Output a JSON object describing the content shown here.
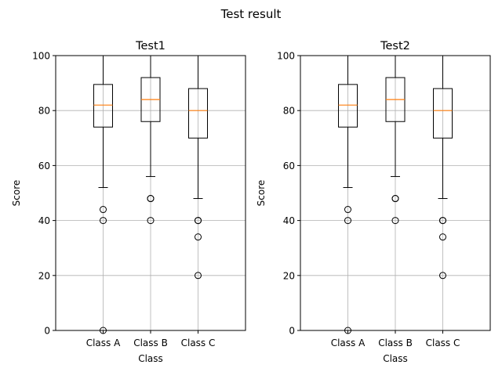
{
  "figure": {
    "title": "Test result"
  },
  "chart_data": [
    {
      "type": "box",
      "title": "Test1",
      "xlabel": "Class",
      "ylabel": "Score",
      "ylim": [
        0,
        100
      ],
      "yticks": [
        0,
        20,
        40,
        60,
        80,
        100
      ],
      "grid": true,
      "categories": [
        "Class A",
        "Class B",
        "Class C"
      ],
      "boxes": [
        {
          "category": "Class A",
          "whisker_low": 52,
          "q1": 74,
          "median": 82,
          "q3": 89.5,
          "whisker_high": 100,
          "outliers": [
            44,
            40,
            0
          ]
        },
        {
          "category": "Class B",
          "whisker_low": 56,
          "q1": 76,
          "median": 84,
          "q3": 92,
          "whisker_high": 100,
          "outliers": [
            48,
            48,
            40
          ]
        },
        {
          "category": "Class C",
          "whisker_low": 48,
          "q1": 70,
          "median": 80,
          "q3": 88,
          "whisker_high": 100,
          "outliers": [
            40,
            40,
            34,
            20
          ]
        }
      ]
    },
    {
      "type": "box",
      "title": "Test2",
      "xlabel": "Class",
      "ylabel": "Score",
      "ylim": [
        0,
        100
      ],
      "yticks": [
        0,
        20,
        40,
        60,
        80,
        100
      ],
      "grid": true,
      "categories": [
        "Class A",
        "Class B",
        "Class C"
      ],
      "boxes": [
        {
          "category": "Class A",
          "whisker_low": 52,
          "q1": 74,
          "median": 82,
          "q3": 89.5,
          "whisker_high": 100,
          "outliers": [
            44,
            40,
            0
          ]
        },
        {
          "category": "Class B",
          "whisker_low": 56,
          "q1": 76,
          "median": 84,
          "q3": 92,
          "whisker_high": 100,
          "outliers": [
            48,
            48,
            40
          ]
        },
        {
          "category": "Class C",
          "whisker_low": 48,
          "q1": 70,
          "median": 80,
          "q3": 88,
          "whisker_high": 100,
          "outliers": [
            40,
            40,
            34,
            20
          ]
        }
      ]
    }
  ],
  "colors": {
    "box": "#000000",
    "median": "#ff7f0e",
    "grid": "#b0b0b0",
    "background": "#ffffff"
  }
}
